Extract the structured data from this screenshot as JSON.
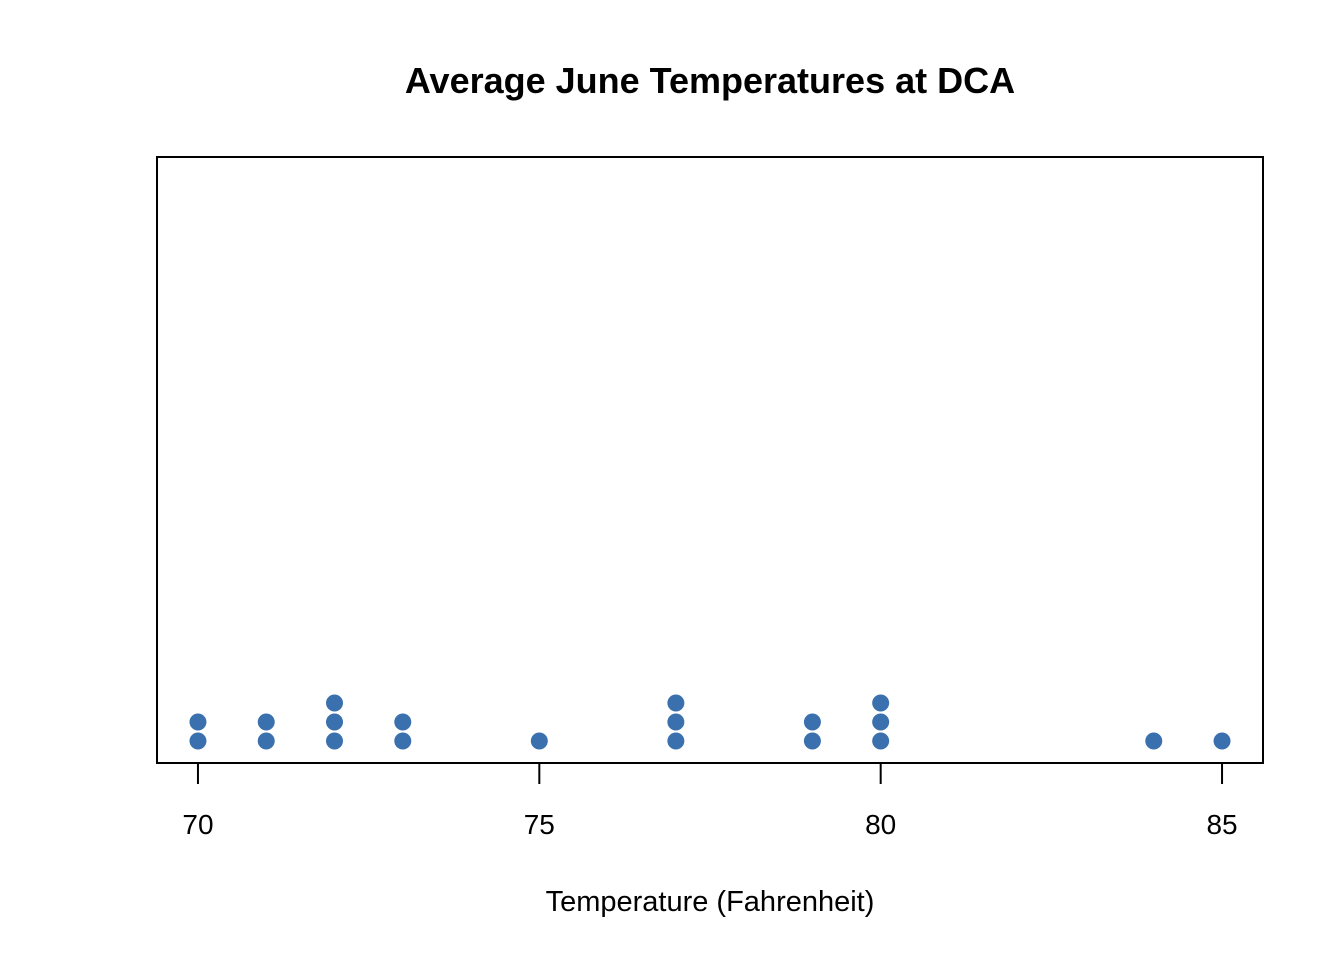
{
  "chart_data": {
    "type": "scatter",
    "subtype": "dot plot",
    "title": "Average June Temperatures at DCA",
    "xlabel": "Temperature (Fahrenheit)",
    "ylabel": "",
    "xlim": [
      69.4,
      85.6
    ],
    "x_ticks": [
      70,
      75,
      80,
      85
    ],
    "x_tick_labels": [
      "70",
      "75",
      "80",
      "85"
    ],
    "grid": false,
    "legend": "none",
    "point_color": "#3A70AD",
    "values": [
      70,
      70,
      71,
      71,
      72,
      72,
      72,
      73,
      73,
      75,
      77,
      77,
      77,
      79,
      79,
      80,
      80,
      80,
      84,
      85
    ],
    "counts": [
      {
        "x": 70,
        "count": 2
      },
      {
        "x": 71,
        "count": 2
      },
      {
        "x": 72,
        "count": 3
      },
      {
        "x": 73,
        "count": 2
      },
      {
        "x": 75,
        "count": 1
      },
      {
        "x": 77,
        "count": 3
      },
      {
        "x": 79,
        "count": 2
      },
      {
        "x": 80,
        "count": 3
      },
      {
        "x": 84,
        "count": 1
      },
      {
        "x": 85,
        "count": 1
      }
    ]
  }
}
